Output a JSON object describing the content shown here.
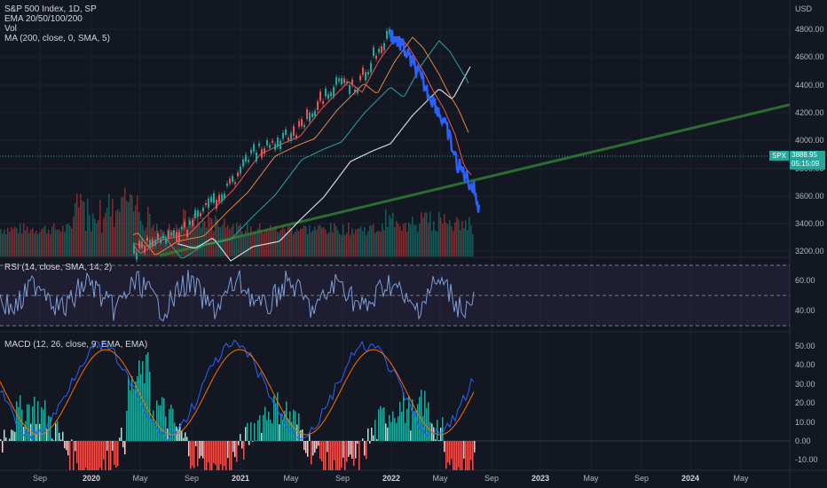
{
  "legend": {
    "title": "S&P 500 Index, 1D, SP",
    "ema": "EMA 20/50/100/200",
    "vol": "Vol",
    "ma": "MA (200, close, 0, SMA, 5)"
  },
  "panes": {
    "rsi_label": "RSI (14, close, SMA, 14, 2)",
    "macd_label": "MACD (12, 26, close, 9, EMA, EMA)"
  },
  "price_axis": {
    "currency": "USD",
    "labels": [
      "4800.00",
      "4600.00",
      "4400.00",
      "4200.00",
      "4000.00",
      "3800.00",
      "3600.00",
      "3400.00",
      "3200.00"
    ]
  },
  "rsi_axis": {
    "labels": [
      "60.00",
      "40.00"
    ]
  },
  "macd_axis": {
    "labels": [
      "50.00",
      "40.00",
      "30.00",
      "20.00",
      "10.00",
      "0.00",
      "-10.00"
    ]
  },
  "last_price": {
    "symbol": "SPX",
    "value": "3888.95",
    "countdown": "05:15:09"
  },
  "time_axis": [
    {
      "label": "Sep",
      "year": false
    },
    {
      "label": "2020",
      "year": true
    },
    {
      "label": "May",
      "year": false
    },
    {
      "label": "Sep",
      "year": false
    },
    {
      "label": "2021",
      "year": true
    },
    {
      "label": "May",
      "year": false
    },
    {
      "label": "Sep",
      "year": false
    },
    {
      "label": "2022",
      "year": true
    },
    {
      "label": "May",
      "year": false
    },
    {
      "label": "Sep",
      "year": false
    },
    {
      "label": "2023",
      "year": true
    },
    {
      "label": "May",
      "year": false
    },
    {
      "label": "Sep",
      "year": false
    },
    {
      "label": "2024",
      "year": true
    },
    {
      "label": "May",
      "year": false
    }
  ],
  "colors": {
    "background": "#131722",
    "up": "#26a69a",
    "down": "#ef5350",
    "blue_line": "#2962ff",
    "trendline": "#2e7d32",
    "ema20": "#ef5350",
    "ema50": "#e5853d",
    "ema100": "#26a69a",
    "ema200": "#d1d4dc",
    "rsi": "#7e9fd6",
    "macd": "#2962ff",
    "signal": "#ff6d00"
  }
}
